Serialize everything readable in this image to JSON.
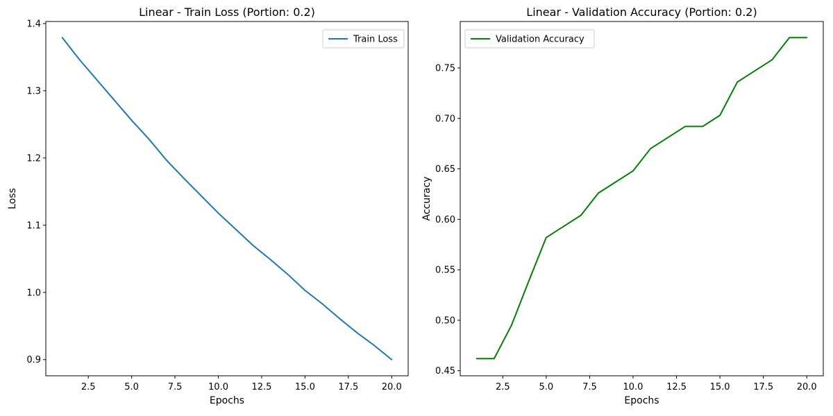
{
  "chart_data": [
    {
      "type": "line",
      "title": "Linear - Train Loss (Portion: 0.2)",
      "xlabel": "Epochs",
      "ylabel": "Loss",
      "xlim": [
        0.05,
        20.95
      ],
      "ylim": [
        0.876,
        1.403
      ],
      "xticks": [
        2.5,
        5.0,
        7.5,
        10.0,
        12.5,
        15.0,
        17.5,
        20.0
      ],
      "xtick_labels": [
        "2.5",
        "5.0",
        "7.5",
        "10.0",
        "12.5",
        "15.0",
        "17.5",
        "20.0"
      ],
      "yticks": [
        0.9,
        1.0,
        1.1,
        1.2,
        1.3,
        1.4
      ],
      "ytick_labels": [
        "0.9",
        "1.0",
        "1.1",
        "1.2",
        "1.3",
        "1.4"
      ],
      "legend": "top-right",
      "grid": false,
      "x": [
        1,
        2,
        3,
        4,
        5,
        6,
        7,
        8,
        9,
        10,
        11,
        12,
        13,
        14,
        15,
        16,
        17,
        18,
        19,
        20
      ],
      "series": [
        {
          "name": "Train Loss",
          "color": "#1f77b4",
          "values": [
            1.379,
            1.346,
            1.316,
            1.286,
            1.256,
            1.228,
            1.197,
            1.17,
            1.144,
            1.118,
            1.094,
            1.07,
            1.049,
            1.027,
            1.003,
            0.983,
            0.961,
            0.94,
            0.921,
            0.9
          ]
        }
      ]
    },
    {
      "type": "line",
      "title": "Linear - Validation Accuracy (Portion: 0.2)",
      "xlabel": "Epochs",
      "ylabel": "Accuracy",
      "xlim": [
        0.05,
        20.95
      ],
      "ylim": [
        0.445,
        0.796
      ],
      "xticks": [
        2.5,
        5.0,
        7.5,
        10.0,
        12.5,
        15.0,
        17.5,
        20.0
      ],
      "xtick_labels": [
        "2.5",
        "5.0",
        "7.5",
        "10.0",
        "12.5",
        "15.0",
        "17.5",
        "20.0"
      ],
      "yticks": [
        0.45,
        0.5,
        0.55,
        0.6,
        0.65,
        0.7,
        0.75
      ],
      "ytick_labels": [
        "0.45",
        "0.50",
        "0.55",
        "0.60",
        "0.65",
        "0.70",
        "0.75"
      ],
      "legend": "top-left",
      "grid": false,
      "x": [
        1,
        2,
        3,
        4,
        5,
        6,
        7,
        8,
        9,
        10,
        11,
        12,
        13,
        14,
        15,
        16,
        17,
        18,
        19,
        20
      ],
      "series": [
        {
          "name": "Validation Accuracy",
          "color": "#008000",
          "values": [
            0.462,
            0.462,
            0.495,
            0.539,
            0.582,
            0.593,
            0.604,
            0.626,
            0.637,
            0.648,
            0.67,
            0.681,
            0.692,
            0.692,
            0.703,
            0.736,
            0.747,
            0.758,
            0.78,
            0.78
          ]
        }
      ]
    }
  ]
}
